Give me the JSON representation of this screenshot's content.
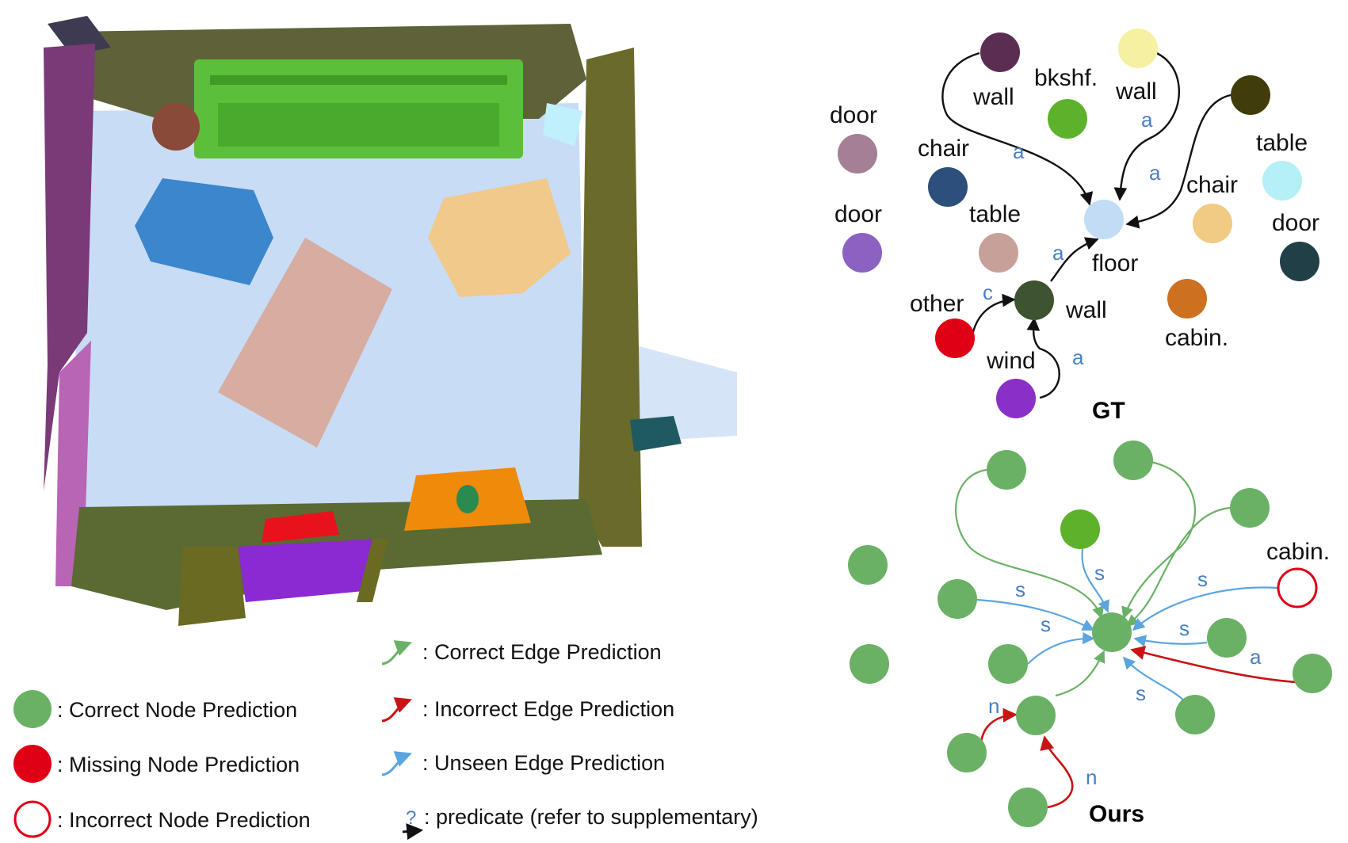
{
  "colors": {
    "correct_node": "#6ab165",
    "missing_node": "#e00015",
    "correct_edge": "#6ab165",
    "incorrect_edge": "#c81414",
    "unseen_edge": "#5aa5e0",
    "edge_label": "#4a7fc1"
  },
  "gt": {
    "title": "GT",
    "nodes": {
      "wall1": "wall",
      "bookshelf": "bkshf.",
      "wall2": "wall",
      "door1": "door",
      "chair1": "chair",
      "table1": "table",
      "chair2": "chair",
      "door2": "door",
      "table2": "table",
      "floor": "floor",
      "door3": "door",
      "other": "other",
      "wall3": "wall",
      "cabinet": "cabin.",
      "window": "wind"
    },
    "edges": {
      "wall1_floor": "a",
      "wall2_floor": "a",
      "wall4_floor": "a",
      "wall3_floor": "a",
      "other_wall3": "c",
      "window_wall3": "a"
    }
  },
  "ours": {
    "title": "Ours",
    "nodes": {
      "cabinet": "cabin."
    },
    "edges": {
      "e1": "s",
      "e2": "s",
      "e3": "s",
      "e4": "s",
      "e5": "s",
      "e6": "a",
      "e7": "s",
      "e8": "n",
      "e9": "n"
    }
  },
  "legend": {
    "correct_node": ": Correct Node Prediction",
    "missing_node": ": Missing Node Prediction",
    "incorrect_node": ": Incorrect Node Prediction",
    "correct_edge": ": Correct Edge Prediction",
    "incorrect_edge": ": Incorrect Edge Prediction",
    "unseen_edge": ": Unseen Edge Prediction",
    "predicate_symbol": "?",
    "predicate": ": predicate (refer to supplementary)"
  }
}
